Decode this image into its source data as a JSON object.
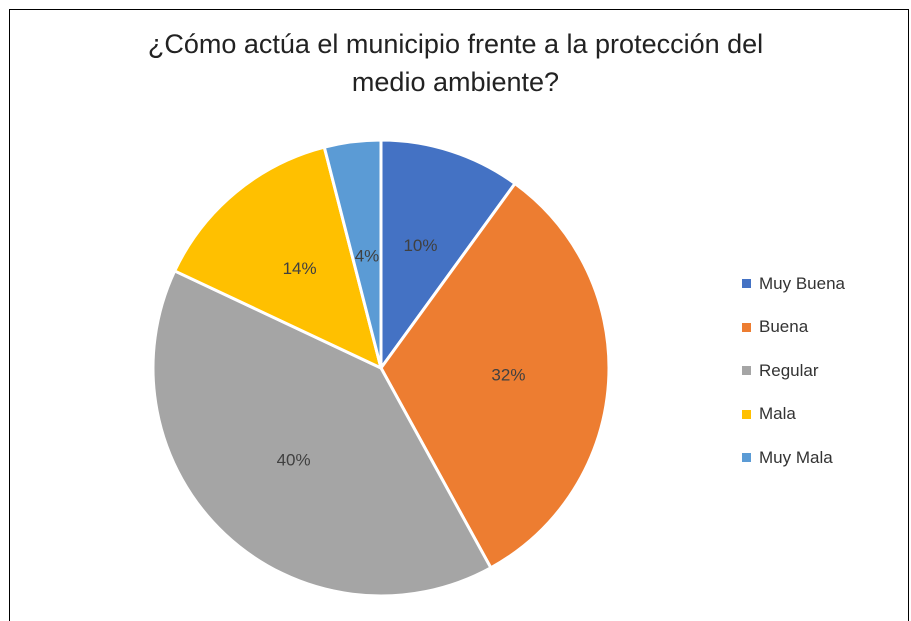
{
  "chart_data": {
    "type": "pie",
    "title_lines": [
      "¿Cómo actúa el municipio frente a la protección del",
      "medio ambiente?"
    ],
    "categories": [
      "Muy Buena",
      "Buena",
      "Regular",
      "Mala",
      "Muy Mala"
    ],
    "values": [
      10,
      32,
      40,
      14,
      4
    ],
    "labels": [
      "10%",
      "32%",
      "40%",
      "14%",
      "4%"
    ],
    "colors": [
      "#4472C4",
      "#ED7D31",
      "#A5A5A5",
      "#FFC000",
      "#5B9BD5"
    ],
    "start_angle": "12 o'clock",
    "direction": "clockwise",
    "legend_position": "right"
  }
}
